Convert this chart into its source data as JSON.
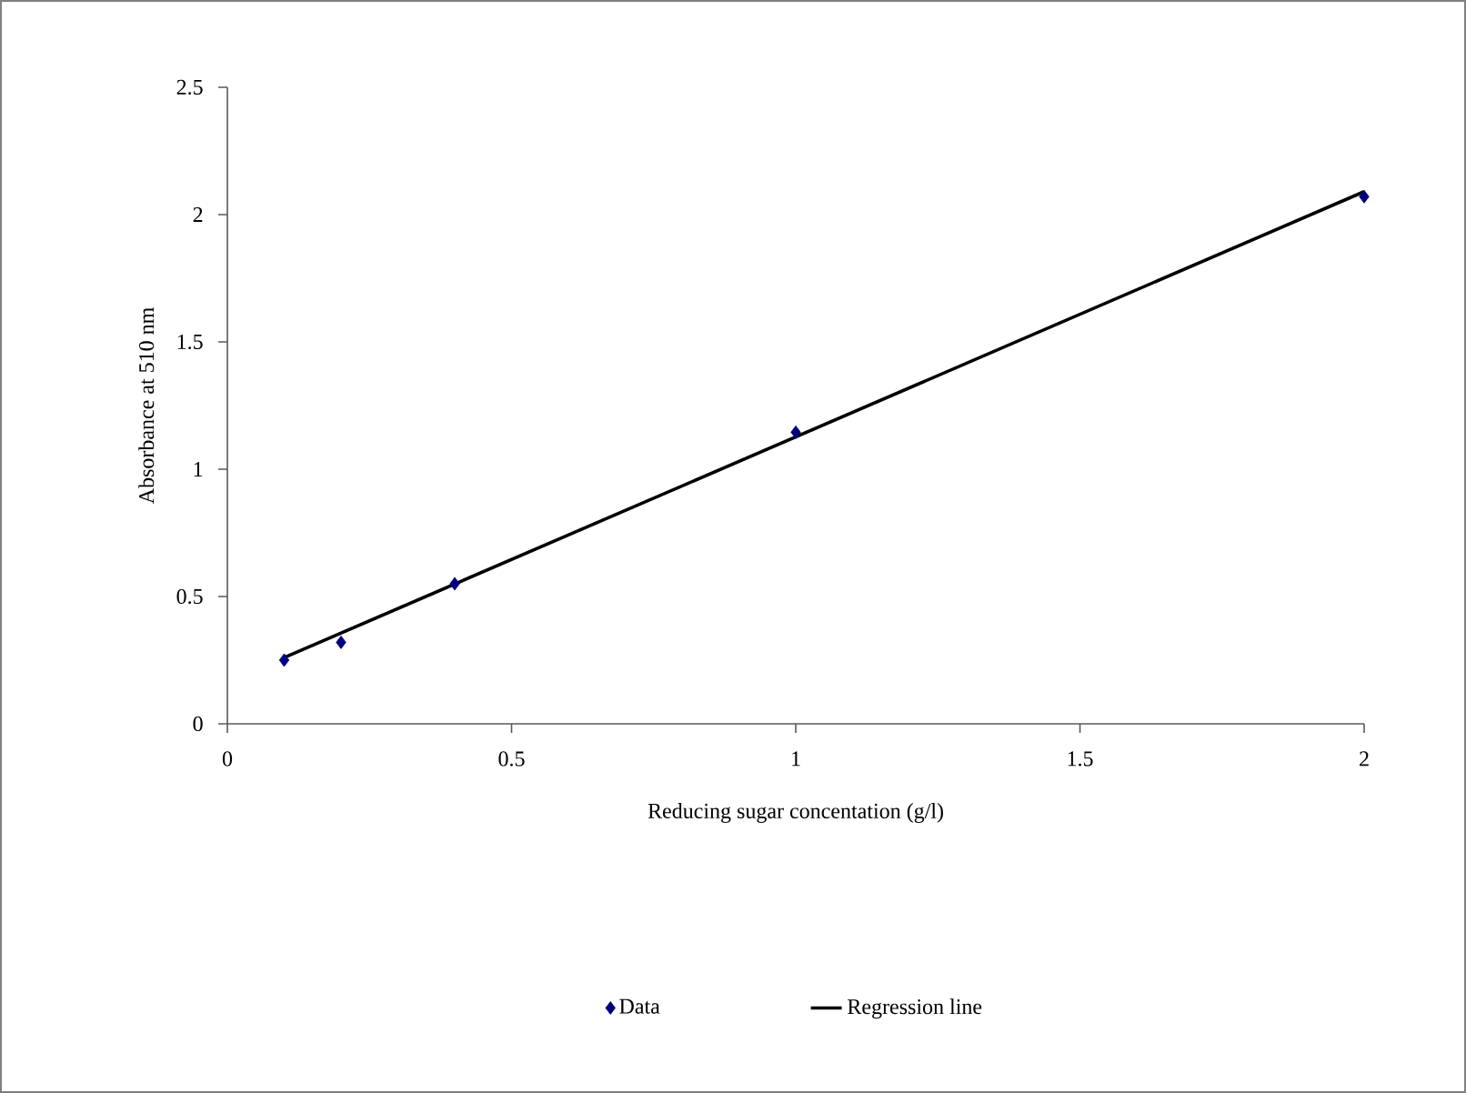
{
  "chart_data": {
    "type": "scatter",
    "xlabel": "Reducing sugar concentation (g/l)",
    "ylabel": "Absorbance at 510 nm",
    "xlim": [
      0,
      2
    ],
    "ylim": [
      0,
      2.5
    ],
    "xticks": [
      0,
      0.5,
      1,
      1.5,
      2
    ],
    "yticks": [
      0,
      0.5,
      1,
      1.5,
      2,
      2.5
    ],
    "legend": "bottom",
    "series": [
      {
        "name": "Data",
        "marker": "diamond",
        "color": "#000080",
        "x": [
          0.1,
          0.2,
          0.4,
          1,
          2
        ],
        "values": [
          0.25,
          0.32,
          0.55,
          1.145,
          2.07
        ]
      },
      {
        "name": "Regression line",
        "type": "line",
        "marker": "none",
        "line_style": "solid",
        "color": "#000000",
        "x": [
          0.1,
          2
        ],
        "values": [
          0.26,
          2.09
        ]
      }
    ]
  }
}
